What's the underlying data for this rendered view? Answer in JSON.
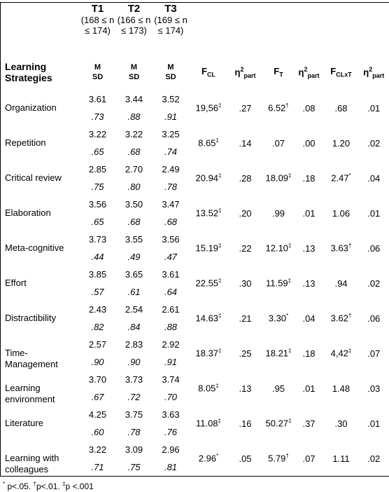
{
  "table": {
    "header": {
      "groups": [
        {
          "label": "T1",
          "n": "(168 ≤ n ≤ 174)",
          "m": "M",
          "sd": "SD"
        },
        {
          "label": "T2",
          "n": "(166 ≤ n ≤ 173)",
          "m": "M",
          "sd": "SD"
        },
        {
          "label": "T3",
          "n": "(169 ≤ n ≤ 174)",
          "m": "M",
          "sd": "SD"
        }
      ],
      "stub": "Learning Strategies",
      "stats": [
        {
          "base": "F",
          "sub": "CL"
        },
        {
          "base": "η",
          "sup": "2",
          "sub": "part"
        },
        {
          "base": "F",
          "sub": "T"
        },
        {
          "base": "η",
          "sup": "2",
          "sub": "part"
        },
        {
          "base": "F",
          "sub": "CLxT"
        },
        {
          "base": "η",
          "sup": "2",
          "sub": "part"
        }
      ]
    },
    "rows": [
      {
        "name": "Organization",
        "m": [
          "3.61",
          "3.44",
          "3.52"
        ],
        "sd": [
          ".73",
          ".88",
          ".91"
        ],
        "stats": [
          "19,56‡",
          ".27",
          "6.52†",
          ".08",
          ".68",
          ".01"
        ]
      },
      {
        "name": "Repetition",
        "m": [
          "3.22",
          "3.22",
          "3.25"
        ],
        "sd": [
          ".65",
          ".68",
          ".74"
        ],
        "stats": [
          "8.65‡",
          ".14",
          ".07",
          ".00",
          "1.20",
          ".02"
        ]
      },
      {
        "name": "Critical review",
        "m": [
          "2.85",
          "2.70",
          "2.49"
        ],
        "sd": [
          ".75",
          ".80",
          ".78"
        ],
        "stats": [
          "20.94‡",
          ".28",
          "18.09‡",
          ".18",
          "2.47*",
          ".04"
        ]
      },
      {
        "name": "Elaboration",
        "m": [
          "3.56",
          "3.50",
          "3.47"
        ],
        "sd": [
          ".65",
          ".68",
          ".68"
        ],
        "stats": [
          "13.52‡",
          ".20",
          ".99",
          ".01",
          "1.06",
          ".01"
        ]
      },
      {
        "name": "Meta-cognitive",
        "m": [
          "3.73",
          "3.55",
          "3.56"
        ],
        "sd": [
          ".44",
          ".49",
          ".47"
        ],
        "stats": [
          "15.19‡",
          ".22",
          "12.10‡",
          ".13",
          "3.63†",
          ".06"
        ]
      },
      {
        "name": "Effort",
        "m": [
          "3.85",
          "3.65",
          "3.61"
        ],
        "sd": [
          ".57",
          ".61",
          ".64"
        ],
        "stats": [
          "22.55‡",
          ".30",
          "11.59‡",
          ".13",
          ".94",
          ".02"
        ]
      },
      {
        "name": "Distractibility",
        "m": [
          "2.43",
          "2.54",
          "2.61"
        ],
        "sd": [
          ".82",
          ".84",
          ".88"
        ],
        "stats": [
          "14.63‡",
          ".21",
          "3.30*",
          ".04",
          "3.62†",
          ".06"
        ]
      },
      {
        "name": "Time-Management",
        "m": [
          "2.57",
          "2.83",
          "2.92"
        ],
        "sd": [
          ".90",
          ".90",
          ".91"
        ],
        "stats": [
          "18.37‡",
          ".25",
          "18.21‡",
          ".18",
          "4,42‡",
          ".07"
        ]
      },
      {
        "name": "Learning environment",
        "m": [
          "3.70",
          "3.73",
          "3.74"
        ],
        "sd": [
          ".67",
          ".72",
          ".70"
        ],
        "stats": [
          "8.05‡",
          ".13",
          ".95",
          ".01",
          "1.48",
          ".03"
        ]
      },
      {
        "name": "Literature",
        "m": [
          "4.25",
          "3.75",
          "3.63"
        ],
        "sd": [
          ".60",
          ".78",
          ".76"
        ],
        "stats": [
          "11.08‡",
          ".16",
          "50.27‡",
          ".37",
          ".30",
          ".01"
        ]
      },
      {
        "name": "Learning with colleagues",
        "m": [
          "3.22",
          "3.09",
          "2.96"
        ],
        "sd": [
          ".71",
          ".75",
          ".81"
        ],
        "stats": [
          "2.96*",
          ".05",
          "5.79†",
          ".07",
          "1.11",
          ".02"
        ]
      }
    ]
  },
  "footnote": "* p<.05. †p<.01. ‡p <.001"
}
